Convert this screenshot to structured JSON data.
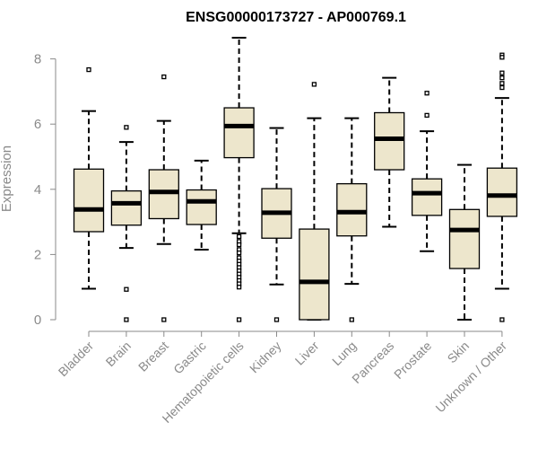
{
  "chart_data": {
    "type": "boxplot",
    "title": "ENSG00000173727 - AP000769.1",
    "xlabel": "",
    "ylabel": "Expression",
    "ylim": [
      0,
      8.7
    ],
    "yticks": [
      0,
      2,
      4,
      6,
      8
    ],
    "grid": false,
    "colors": {
      "box_fill": "#ede6cc",
      "outline": "#000000",
      "axis": "#8a8a8a"
    },
    "categories": [
      "Bladder",
      "Brain",
      "Breast",
      "Gastric",
      "Hematopoietic cells",
      "Kidney",
      "Liver",
      "Lung",
      "Pancreas",
      "Prostate",
      "Skin",
      "Unknown / Other"
    ],
    "boxes": [
      {
        "q1": 2.7,
        "median": 3.38,
        "q3": 4.62,
        "whisker_low": 0.95,
        "whisker_high": 6.4,
        "outliers": [
          7.67
        ]
      },
      {
        "q1": 2.9,
        "median": 3.57,
        "q3": 3.95,
        "whisker_low": 2.2,
        "whisker_high": 5.45,
        "outliers": [
          5.9,
          0.93,
          0.0
        ]
      },
      {
        "q1": 3.1,
        "median": 3.92,
        "q3": 4.6,
        "whisker_low": 2.32,
        "whisker_high": 6.1,
        "outliers": [
          7.45,
          0.0
        ]
      },
      {
        "q1": 2.92,
        "median": 3.63,
        "q3": 3.98,
        "whisker_low": 2.15,
        "whisker_high": 4.88,
        "outliers": []
      },
      {
        "q1": 4.97,
        "median": 5.94,
        "q3": 6.5,
        "whisker_low": 2.65,
        "whisker_high": 8.65,
        "outliers": [
          2.55,
          2.4,
          2.3,
          2.15,
          2.05,
          1.9,
          1.8,
          1.7,
          1.6,
          1.5,
          1.4,
          1.3,
          1.2,
          1.1,
          1.0,
          0.0
        ]
      },
      {
        "q1": 2.5,
        "median": 3.28,
        "q3": 4.02,
        "whisker_low": 1.08,
        "whisker_high": 5.88,
        "outliers": [
          0.0
        ]
      },
      {
        "q1": 0.0,
        "median": 1.16,
        "q3": 2.78,
        "whisker_low": 0.0,
        "whisker_high": 6.18,
        "outliers": [
          7.22
        ]
      },
      {
        "q1": 2.57,
        "median": 3.3,
        "q3": 4.17,
        "whisker_low": 1.1,
        "whisker_high": 6.18,
        "outliers": [
          0.0
        ]
      },
      {
        "q1": 4.6,
        "median": 5.55,
        "q3": 6.35,
        "whisker_low": 2.85,
        "whisker_high": 7.42,
        "outliers": []
      },
      {
        "q1": 3.2,
        "median": 3.88,
        "q3": 4.32,
        "whisker_low": 2.1,
        "whisker_high": 5.78,
        "outliers": [
          6.95,
          6.27
        ]
      },
      {
        "q1": 1.57,
        "median": 2.75,
        "q3": 3.38,
        "whisker_low": 0.0,
        "whisker_high": 4.75,
        "outliers": []
      },
      {
        "q1": 3.17,
        "median": 3.81,
        "q3": 4.65,
        "whisker_low": 0.95,
        "whisker_high": 6.8,
        "outliers": [
          8.12,
          8.05,
          7.57,
          7.42,
          7.25,
          7.12,
          0.0
        ]
      }
    ]
  }
}
